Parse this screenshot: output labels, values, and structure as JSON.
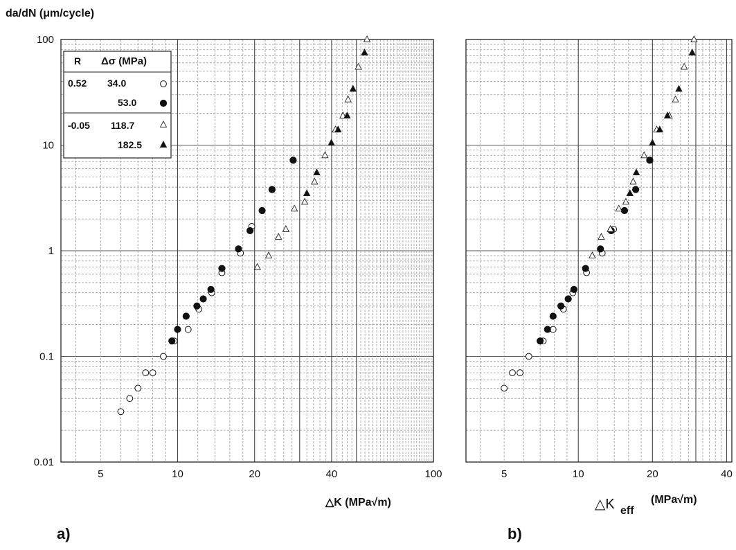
{
  "y_axis_title": "da/dN  (μm/cycle)",
  "chart_data": [
    {
      "type": "scatter",
      "panel_label": "a)",
      "xlabel": "△K (MPa√m)",
      "ylabel": "da/dN  (μm/cycle)",
      "x_scale": "log",
      "y_scale": "log",
      "xlim": [
        3.5,
        100
      ],
      "ylim": [
        0.01,
        100
      ],
      "x_ticks": [
        "5",
        "10",
        "20",
        "40",
        "100"
      ],
      "x_tick_values": [
        5,
        10,
        20,
        40,
        100
      ],
      "y_ticks": [
        "0.01",
        "0.1",
        "1",
        "10",
        "100"
      ],
      "y_tick_values": [
        0.01,
        0.1,
        1,
        10,
        100
      ],
      "grid": true,
      "legend": {
        "placement": "top-left",
        "header": {
          "r": "R",
          "ds": "Δσ (MPa)"
        },
        "rows": [
          {
            "r": "0.52",
            "ds": "34.0",
            "marker": "circle-open"
          },
          {
            "r": "",
            "ds": "53.0",
            "marker": "circle-filled"
          },
          {
            "r": "-0.05",
            "ds": "118.7",
            "marker": "triangle-open"
          },
          {
            "r": "",
            "ds": "182.5",
            "marker": "triangle-filled"
          }
        ]
      },
      "series": [
        {
          "name": "34.0",
          "marker": "circle-open",
          "points": [
            [
              6.0,
              0.03
            ],
            [
              6.5,
              0.04
            ],
            [
              7.0,
              0.05
            ],
            [
              7.5,
              0.07
            ],
            [
              8.0,
              0.07
            ],
            [
              8.8,
              0.1
            ],
            [
              9.7,
              0.14
            ],
            [
              11.0,
              0.18
            ],
            [
              12.1,
              0.28
            ],
            [
              13.6,
              0.4
            ],
            [
              14.9,
              0.62
            ],
            [
              17.6,
              0.95
            ],
            [
              19.5,
              1.7
            ]
          ]
        },
        {
          "name": "53.0",
          "marker": "circle-filled",
          "points": [
            [
              9.5,
              0.14
            ],
            [
              10.0,
              0.18
            ],
            [
              10.8,
              0.24
            ],
            [
              11.9,
              0.3
            ],
            [
              12.6,
              0.35
            ],
            [
              13.5,
              0.43
            ],
            [
              14.9,
              0.68
            ],
            [
              17.3,
              1.04
            ],
            [
              19.2,
              1.55
            ],
            [
              21.4,
              2.4
            ],
            [
              23.4,
              3.8
            ],
            [
              28.3,
              7.2
            ]
          ]
        },
        {
          "name": "118.7",
          "marker": "triangle-open",
          "points": [
            [
              20.5,
              0.7
            ],
            [
              22.7,
              0.9
            ],
            [
              24.8,
              1.35
            ],
            [
              26.5,
              1.6
            ],
            [
              28.6,
              2.5
            ],
            [
              31.4,
              2.9
            ],
            [
              34.3,
              4.5
            ],
            [
              37.7,
              8.0
            ],
            [
              41.4,
              14.0
            ],
            [
              44.3,
              19.0
            ],
            [
              46.4,
              27.0
            ],
            [
              50.9,
              55.0
            ],
            [
              55.0,
              100.0
            ]
          ]
        },
        {
          "name": "182.5",
          "marker": "triangle-filled",
          "points": [
            [
              32.0,
              3.5
            ],
            [
              35.0,
              5.5
            ],
            [
              39.9,
              10.5
            ],
            [
              42.4,
              14.0
            ],
            [
              46.0,
              19.0
            ],
            [
              48.5,
              34.0
            ],
            [
              53.8,
              75.0
            ]
          ]
        }
      ]
    },
    {
      "type": "scatter",
      "panel_label": "b)",
      "xlabel": "△K",
      "xlabel_sub": "eff",
      "xlabel_unit": "(MPa√m)",
      "x_scale": "log",
      "y_scale": "log",
      "xlim": [
        3.5,
        42
      ],
      "ylim": [
        0.01,
        100
      ],
      "x_ticks": [
        "5",
        "10",
        "20",
        "40"
      ],
      "x_tick_values": [
        5,
        10,
        20,
        40
      ],
      "grid": true,
      "series": [
        {
          "name": "34.0",
          "marker": "circle-open",
          "points": [
            [
              5.0,
              0.05
            ],
            [
              5.4,
              0.07
            ],
            [
              5.8,
              0.07
            ],
            [
              6.3,
              0.1
            ],
            [
              7.2,
              0.14
            ],
            [
              7.9,
              0.18
            ],
            [
              8.7,
              0.28
            ],
            [
              9.5,
              0.4
            ],
            [
              10.8,
              0.62
            ],
            [
              12.5,
              0.95
            ],
            [
              13.9,
              1.6
            ]
          ]
        },
        {
          "name": "53.0",
          "marker": "circle-filled",
          "points": [
            [
              7.0,
              0.14
            ],
            [
              7.5,
              0.18
            ],
            [
              7.9,
              0.24
            ],
            [
              8.5,
              0.3
            ],
            [
              9.1,
              0.35
            ],
            [
              9.6,
              0.43
            ],
            [
              10.7,
              0.68
            ],
            [
              12.3,
              1.04
            ],
            [
              13.6,
              1.55
            ],
            [
              15.4,
              2.4
            ],
            [
              17.1,
              3.8
            ],
            [
              19.5,
              7.2
            ]
          ]
        },
        {
          "name": "118.7",
          "marker": "triangle-open",
          "points": [
            [
              11.4,
              0.9
            ],
            [
              12.4,
              1.35
            ],
            [
              13.5,
              1.6
            ],
            [
              14.6,
              2.5
            ],
            [
              15.6,
              2.9
            ],
            [
              16.7,
              4.5
            ],
            [
              18.5,
              8.0
            ],
            [
              20.8,
              14.0
            ],
            [
              23.4,
              19.0
            ],
            [
              24.8,
              27.0
            ],
            [
              26.9,
              55.0
            ],
            [
              29.5,
              100.0
            ]
          ]
        },
        {
          "name": "182.5",
          "marker": "triangle-filled",
          "points": [
            [
              16.2,
              3.5
            ],
            [
              17.2,
              5.5
            ],
            [
              20.0,
              10.5
            ],
            [
              21.4,
              14.0
            ],
            [
              23.0,
              19.0
            ],
            [
              25.6,
              34.0
            ],
            [
              29.0,
              75.0
            ]
          ]
        }
      ]
    }
  ]
}
